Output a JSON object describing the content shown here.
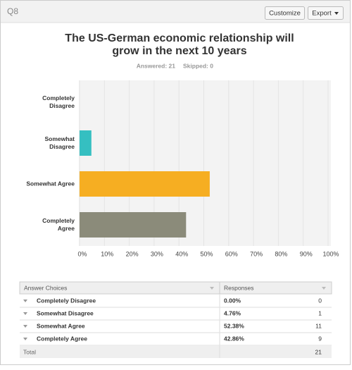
{
  "header": {
    "question": "Q8",
    "buttons": [
      "Customize",
      "Export"
    ]
  },
  "chart_data": {
    "type": "bar",
    "orientation": "horizontal",
    "title": [
      "The US-German economic relationship will",
      "grow in the next 10 years"
    ],
    "answered": "Answered: 21",
    "skipped": "Skipped: 0",
    "categories": [
      [
        "Completely",
        "Disagree"
      ],
      [
        "Somewhat",
        "Disagree"
      ],
      [
        "Somewhat Agree"
      ],
      [
        "Completely",
        "Agree"
      ]
    ],
    "values": [
      0,
      4.76,
      52.38,
      42.86
    ],
    "colors": [
      "#b0b0b0",
      "#35bfc1",
      "#f6ae22",
      "#8b8b7a"
    ],
    "xlim": [
      0,
      100
    ],
    "xticks": [
      {
        "value": 0,
        "label": "0%"
      },
      {
        "value": 10,
        "label": "10%"
      },
      {
        "value": 20,
        "label": "20%"
      },
      {
        "value": 30,
        "label": "30%"
      },
      {
        "value": 40,
        "label": "40%"
      },
      {
        "value": 50,
        "label": "50%"
      },
      {
        "value": 60,
        "label": "60%"
      },
      {
        "value": 70,
        "label": "70%"
      },
      {
        "value": 80,
        "label": "80%"
      },
      {
        "value": 90,
        "label": "90%"
      },
      {
        "value": 100,
        "label": "100%"
      }
    ],
    "grid": true
  },
  "table": {
    "columns": [
      "Answer Choices",
      "Responses"
    ],
    "rows": [
      [
        "Completely Disagree",
        "0.00%",
        "0"
      ],
      [
        "Somewhat Disagree",
        "4.76%",
        "1"
      ],
      [
        "Somewhat Agree",
        "52.38%",
        "11"
      ],
      [
        "Completely Agree",
        "42.86%",
        "9"
      ]
    ],
    "total": [
      "Total",
      "21"
    ]
  }
}
